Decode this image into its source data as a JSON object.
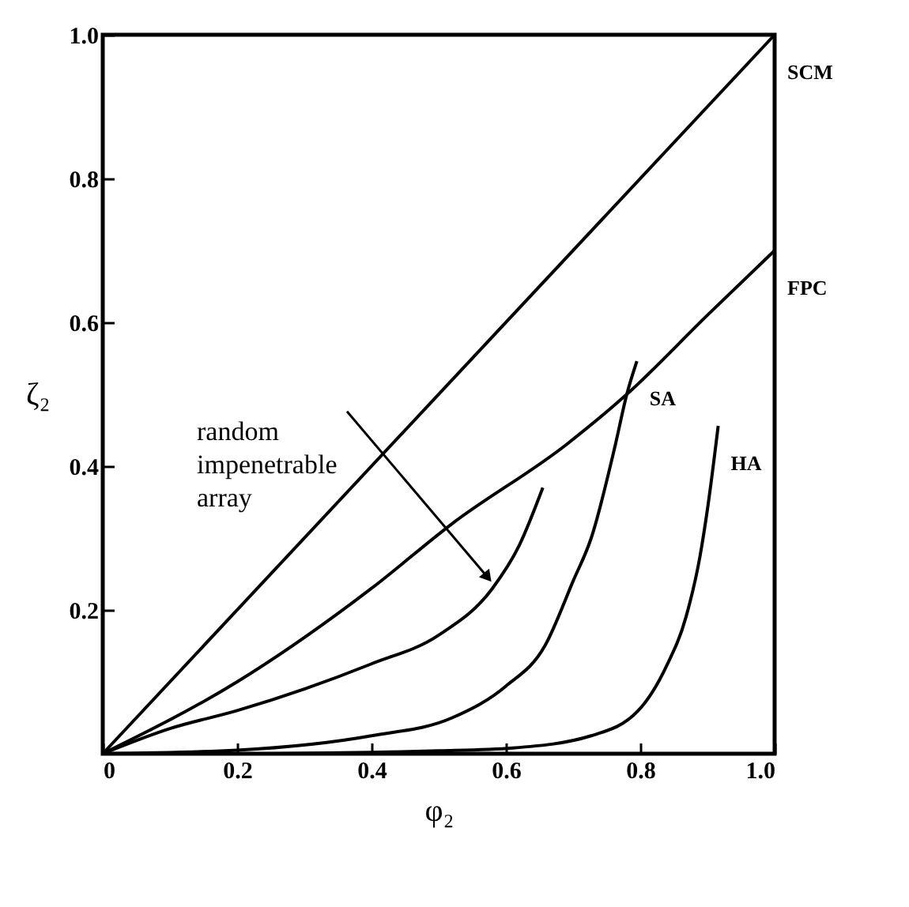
{
  "chart_data": {
    "type": "line",
    "xlabel": "φ₂",
    "ylabel": "ζ₂",
    "xlim": [
      0,
      1
    ],
    "ylim": [
      0,
      1
    ],
    "xticks": [
      0,
      0.2,
      0.4,
      0.6,
      0.8,
      {
        "value": 1,
        "label": "1.0"
      }
    ],
    "yticks": [
      0.2,
      0.4,
      0.6,
      0.8,
      {
        "value": 1,
        "label": "1.0"
      }
    ],
    "grid": false,
    "legend": false,
    "line_style": "solid",
    "series": [
      {
        "name": "SCM",
        "color": "#000000",
        "x": [
          0,
          1
        ],
        "values": [
          0,
          1
        ]
      },
      {
        "name": "FPC",
        "color": "#000000",
        "x": [
          0,
          0.2,
          0.4,
          0.52,
          0.69,
          0.78,
          0.9,
          1.0
        ],
        "values": [
          0,
          0.1,
          0.23,
          0.32,
          0.43,
          0.5,
          0.61,
          0.7
        ]
      },
      {
        "color": "#000000",
        "x": [
          0,
          0.1,
          0.2,
          0.3,
          0.4,
          0.5,
          0.58,
          0.62,
          0.655
        ],
        "values": [
          0,
          0.035,
          0.06,
          0.09,
          0.125,
          0.165,
          0.23,
          0.29,
          0.37
        ]
      },
      {
        "name": "SA",
        "color": "#000000",
        "x": [
          0,
          0.2,
          0.4,
          0.52,
          0.6,
          0.658,
          0.7,
          0.727,
          0.763,
          0.78,
          0.795
        ],
        "values": [
          0,
          0.005,
          0.025,
          0.05,
          0.094,
          0.15,
          0.24,
          0.3,
          0.43,
          0.5,
          0.546
        ]
      },
      {
        "name": "HA",
        "color": "#000000",
        "x": [
          0.25,
          0.4,
          0.5,
          0.61,
          0.727,
          0.797,
          0.838,
          0.868,
          0.889,
          0.9,
          0.916
        ],
        "values": [
          0,
          0.002,
          0.004,
          0.008,
          0.025,
          0.06,
          0.12,
          0.19,
          0.275,
          0.34,
          0.456
        ]
      }
    ],
    "annotations": [
      {
        "text": "random impenetrable array",
        "x": 0.58,
        "y": 0.23
      }
    ]
  }
}
